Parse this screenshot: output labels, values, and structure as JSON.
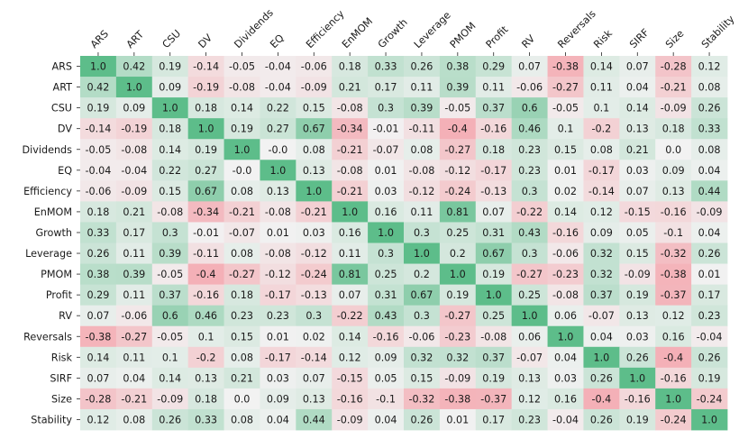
{
  "chart_data": {
    "type": "heatmap",
    "title": "",
    "row_labels": [
      "ARS",
      "ART",
      "CSU",
      "DV",
      "Dividends",
      "EQ",
      "Efficiency",
      "EnMOM",
      "Growth",
      "Leverage",
      "PMOM",
      "Profit",
      "RV",
      "Reversals",
      "Risk",
      "SIRF",
      "Size",
      "Stability"
    ],
    "col_labels": [
      "ARS",
      "ART",
      "CSU",
      "DV",
      "Dividends",
      "EQ",
      "Efficiency",
      "EnMOM",
      "Growth",
      "Leverage",
      "PMOM",
      "Profit",
      "RV",
      "Reversals",
      "Risk",
      "SIRF",
      "Size",
      "Stability"
    ],
    "x_tick_position": "top",
    "x_tick_rotation_deg": 45,
    "color_scale": {
      "type": "diverging",
      "negative": "#f4a0a8",
      "center": "#f2f2f2",
      "positive": "#5dbd8a",
      "vmin": -0.5,
      "vmax": 1.0
    },
    "annotations_shown": true,
    "values": [
      [
        "1.0",
        "0.42",
        "0.19",
        "-0.14",
        "-0.05",
        "-0.04",
        "-0.06",
        "0.18",
        "0.33",
        "0.26",
        "0.38",
        "0.29",
        "0.07",
        "-0.38",
        "0.14",
        "0.07",
        "-0.28",
        "0.12"
      ],
      [
        "0.42",
        "1.0",
        "0.09",
        "-0.19",
        "-0.08",
        "-0.04",
        "-0.09",
        "0.21",
        "0.17",
        "0.11",
        "0.39",
        "0.11",
        "-0.06",
        "-0.27",
        "0.11",
        "0.04",
        "-0.21",
        "0.08"
      ],
      [
        "0.19",
        "0.09",
        "1.0",
        "0.18",
        "0.14",
        "0.22",
        "0.15",
        "-0.08",
        "0.3",
        "0.39",
        "-0.05",
        "0.37",
        "0.6",
        "-0.05",
        "0.1",
        "0.14",
        "-0.09",
        "0.26"
      ],
      [
        "-0.14",
        "-0.19",
        "0.18",
        "1.0",
        "0.19",
        "0.27",
        "0.67",
        "-0.34",
        "-0.01",
        "-0.11",
        "-0.4",
        "-0.16",
        "0.46",
        "0.1",
        "-0.2",
        "0.13",
        "0.18",
        "0.33"
      ],
      [
        "-0.05",
        "-0.08",
        "0.14",
        "0.19",
        "1.0",
        "-0.0",
        "0.08",
        "-0.21",
        "-0.07",
        "0.08",
        "-0.27",
        "0.18",
        "0.23",
        "0.15",
        "0.08",
        "0.21",
        "0.0",
        "0.08"
      ],
      [
        "-0.04",
        "-0.04",
        "0.22",
        "0.27",
        "-0.0",
        "1.0",
        "0.13",
        "-0.08",
        "0.01",
        "-0.08",
        "-0.12",
        "-0.17",
        "0.23",
        "0.01",
        "-0.17",
        "0.03",
        "0.09",
        "0.04"
      ],
      [
        "-0.06",
        "-0.09",
        "0.15",
        "0.67",
        "0.08",
        "0.13",
        "1.0",
        "-0.21",
        "0.03",
        "-0.12",
        "-0.24",
        "-0.13",
        "0.3",
        "0.02",
        "-0.14",
        "0.07",
        "0.13",
        "0.44"
      ],
      [
        "0.18",
        "0.21",
        "-0.08",
        "-0.34",
        "-0.21",
        "-0.08",
        "-0.21",
        "1.0",
        "0.16",
        "0.11",
        "0.81",
        "0.07",
        "-0.22",
        "0.14",
        "0.12",
        "-0.15",
        "-0.16",
        "-0.09"
      ],
      [
        "0.33",
        "0.17",
        "0.3",
        "-0.01",
        "-0.07",
        "0.01",
        "0.03",
        "0.16",
        "1.0",
        "0.3",
        "0.25",
        "0.31",
        "0.43",
        "-0.16",
        "0.09",
        "0.05",
        "-0.1",
        "0.04"
      ],
      [
        "0.26",
        "0.11",
        "0.39",
        "-0.11",
        "0.08",
        "-0.08",
        "-0.12",
        "0.11",
        "0.3",
        "1.0",
        "0.2",
        "0.67",
        "0.3",
        "-0.06",
        "0.32",
        "0.15",
        "-0.32",
        "0.26"
      ],
      [
        "0.38",
        "0.39",
        "-0.05",
        "-0.4",
        "-0.27",
        "-0.12",
        "-0.24",
        "0.81",
        "0.25",
        "0.2",
        "1.0",
        "0.19",
        "-0.27",
        "-0.23",
        "0.32",
        "-0.09",
        "-0.38",
        "0.01"
      ],
      [
        "0.29",
        "0.11",
        "0.37",
        "-0.16",
        "0.18",
        "-0.17",
        "-0.13",
        "0.07",
        "0.31",
        "0.67",
        "0.19",
        "1.0",
        "0.25",
        "-0.08",
        "0.37",
        "0.19",
        "-0.37",
        "0.17"
      ],
      [
        "0.07",
        "-0.06",
        "0.6",
        "0.46",
        "0.23",
        "0.23",
        "0.3",
        "-0.22",
        "0.43",
        "0.3",
        "-0.27",
        "0.25",
        "1.0",
        "0.06",
        "-0.07",
        "0.13",
        "0.12",
        "0.23"
      ],
      [
        "-0.38",
        "-0.27",
        "-0.05",
        "0.1",
        "0.15",
        "0.01",
        "0.02",
        "0.14",
        "-0.16",
        "-0.06",
        "-0.23",
        "-0.08",
        "0.06",
        "1.0",
        "0.04",
        "0.03",
        "0.16",
        "-0.04"
      ],
      [
        "0.14",
        "0.11",
        "0.1",
        "-0.2",
        "0.08",
        "-0.17",
        "-0.14",
        "0.12",
        "0.09",
        "0.32",
        "0.32",
        "0.37",
        "-0.07",
        "0.04",
        "1.0",
        "0.26",
        "-0.4",
        "0.26"
      ],
      [
        "0.07",
        "0.04",
        "0.14",
        "0.13",
        "0.21",
        "0.03",
        "0.07",
        "-0.15",
        "0.05",
        "0.15",
        "-0.09",
        "0.19",
        "0.13",
        "0.03",
        "0.26",
        "1.0",
        "-0.16",
        "0.19"
      ],
      [
        "-0.28",
        "-0.21",
        "-0.09",
        "0.18",
        "0.0",
        "0.09",
        "0.13",
        "-0.16",
        "-0.1",
        "-0.32",
        "-0.38",
        "-0.37",
        "0.12",
        "0.16",
        "-0.4",
        "-0.16",
        "1.0",
        "-0.24"
      ],
      [
        "0.12",
        "0.08",
        "0.26",
        "0.33",
        "0.08",
        "0.04",
        "0.44",
        "-0.09",
        "0.04",
        "0.26",
        "0.01",
        "0.17",
        "0.23",
        "-0.04",
        "0.26",
        "0.19",
        "-0.24",
        "1.0"
      ]
    ]
  }
}
